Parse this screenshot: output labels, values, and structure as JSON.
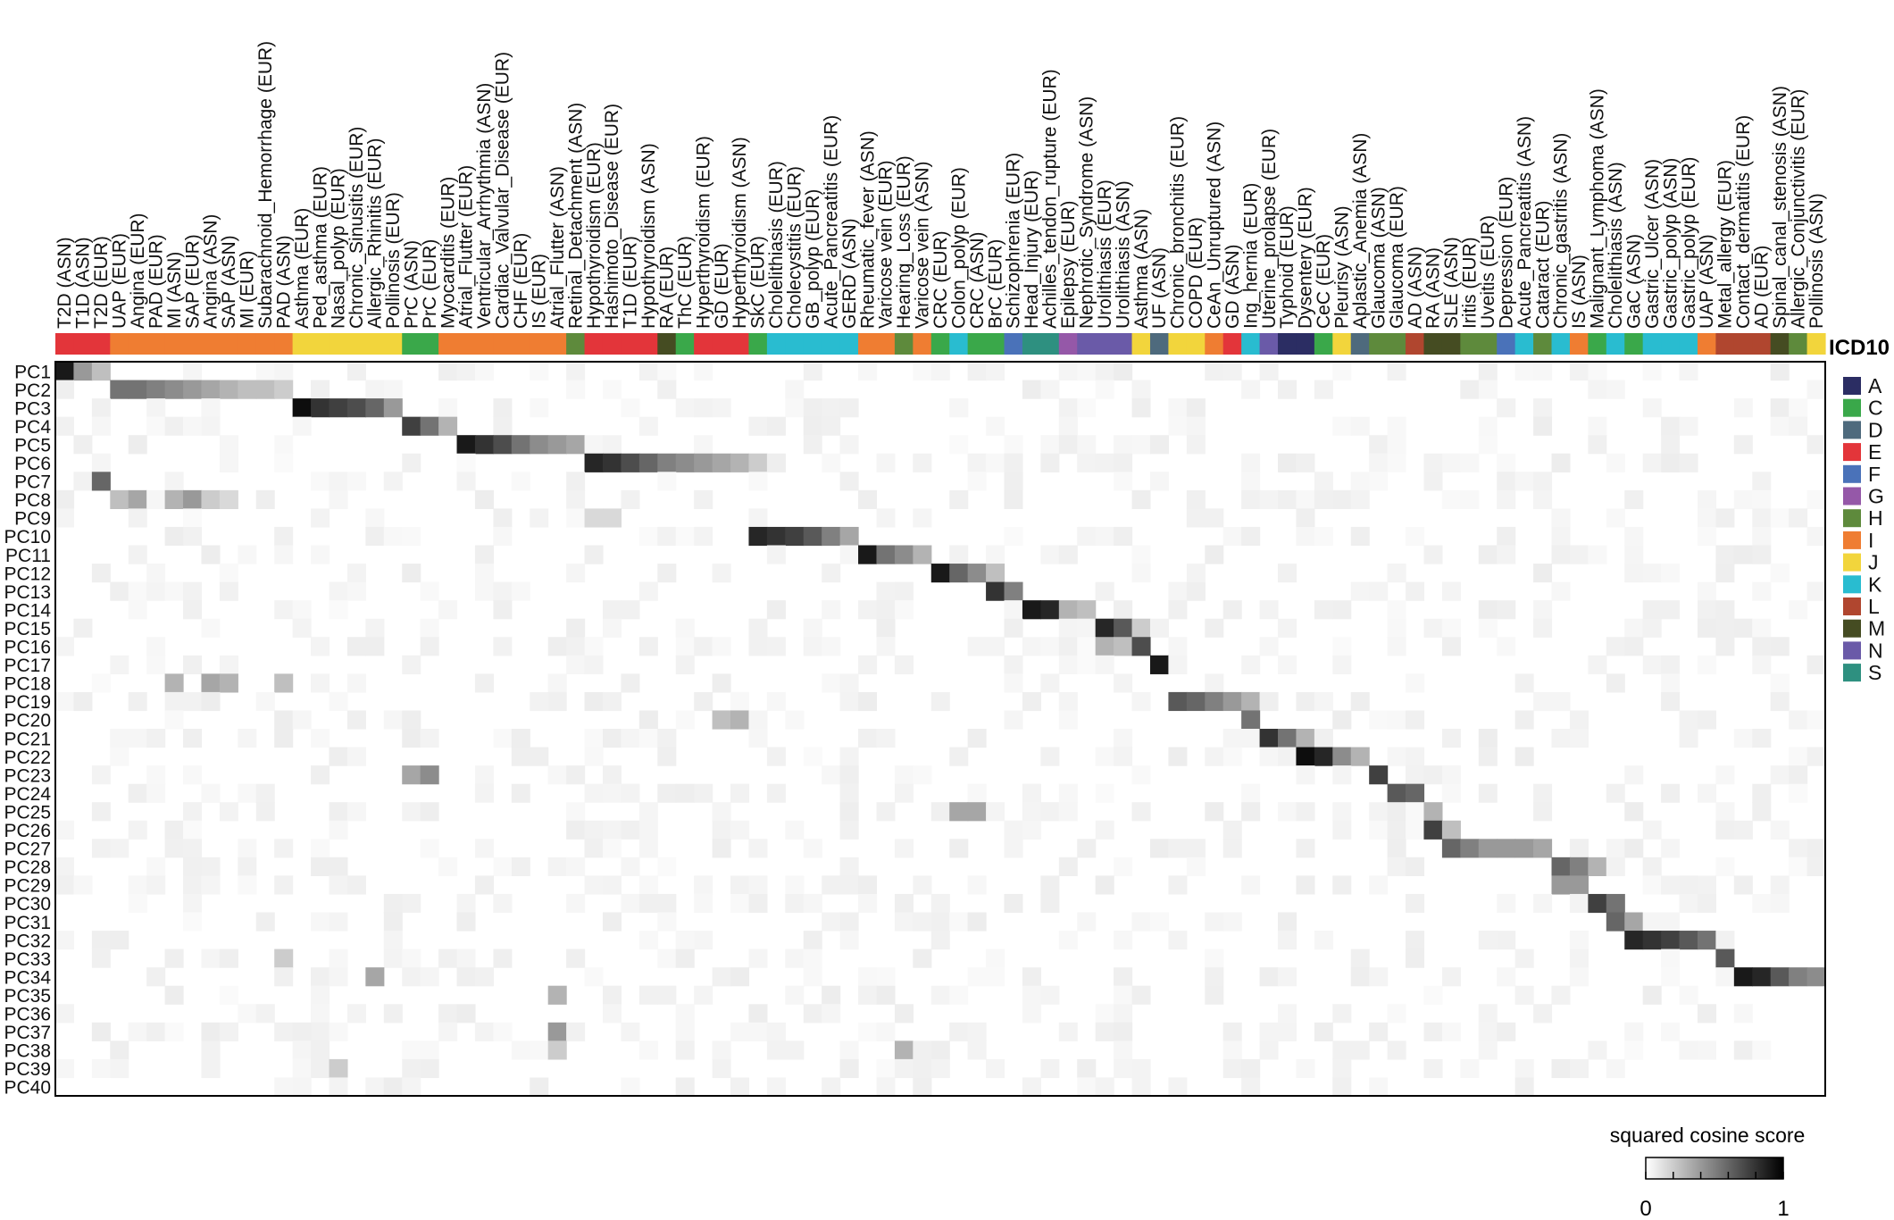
{
  "chart_data": {
    "type": "heatmap",
    "title": "",
    "xlabel": "",
    "ylabel": "",
    "columns": [
      {
        "name": "T2D (ASN)",
        "icd": "E"
      },
      {
        "name": "T1D (ASN)",
        "icd": "E"
      },
      {
        "name": "T2D (EUR)",
        "icd": "E"
      },
      {
        "name": "UAP (EUR)",
        "icd": "I"
      },
      {
        "name": "Angina (EUR)",
        "icd": "I"
      },
      {
        "name": "PAD (EUR)",
        "icd": "I"
      },
      {
        "name": "MI (ASN)",
        "icd": "I"
      },
      {
        "name": "SAP (EUR)",
        "icd": "I"
      },
      {
        "name": "Angina (ASN)",
        "icd": "I"
      },
      {
        "name": "SAP (ASN)",
        "icd": "I"
      },
      {
        "name": "MI (EUR)",
        "icd": "I"
      },
      {
        "name": "Subarachnoid_Hemorrhage (EUR)",
        "icd": "I"
      },
      {
        "name": "PAD (ASN)",
        "icd": "I"
      },
      {
        "name": "Asthma (EUR)",
        "icd": "J"
      },
      {
        "name": "Ped_asthma (EUR)",
        "icd": "J"
      },
      {
        "name": "Nasal_polyp (EUR)",
        "icd": "J"
      },
      {
        "name": "Chronic_Sinusitis (EUR)",
        "icd": "J"
      },
      {
        "name": "Allergic_Rhinitis (EUR)",
        "icd": "J"
      },
      {
        "name": "Pollinosis (EUR)",
        "icd": "J"
      },
      {
        "name": "PrC (ASN)",
        "icd": "C"
      },
      {
        "name": "PrC (EUR)",
        "icd": "C"
      },
      {
        "name": "Myocarditis (EUR)",
        "icd": "I"
      },
      {
        "name": "Atrial_Flutter (EUR)",
        "icd": "I"
      },
      {
        "name": "Ventricular_Arrhythmia (ASN)",
        "icd": "I"
      },
      {
        "name": "Cardiac_Valvular_Disease (EUR)",
        "icd": "I"
      },
      {
        "name": "CHF (EUR)",
        "icd": "I"
      },
      {
        "name": "IS (EUR)",
        "icd": "I"
      },
      {
        "name": "Atrial_Flutter (ASN)",
        "icd": "I"
      },
      {
        "name": "Retinal_Detachment (ASN)",
        "icd": "H"
      },
      {
        "name": "Hypothyroidism (EUR)",
        "icd": "E"
      },
      {
        "name": "Hashimoto_Disease (EUR)",
        "icd": "E"
      },
      {
        "name": "T1D (EUR)",
        "icd": "E"
      },
      {
        "name": "Hypothyroidism (ASN)",
        "icd": "E"
      },
      {
        "name": "RA (EUR)",
        "icd": "M"
      },
      {
        "name": "ThC (EUR)",
        "icd": "C"
      },
      {
        "name": "Hyperthyroidism (EUR)",
        "icd": "E"
      },
      {
        "name": "GD (EUR)",
        "icd": "E"
      },
      {
        "name": "Hyperthyroidism (ASN)",
        "icd": "E"
      },
      {
        "name": "SkC (EUR)",
        "icd": "C"
      },
      {
        "name": "Cholelithiasis (EUR)",
        "icd": "K"
      },
      {
        "name": "Cholecystitis (EUR)",
        "icd": "K"
      },
      {
        "name": "GB_polyp (EUR)",
        "icd": "K"
      },
      {
        "name": "Acute_Pancreatitis (EUR)",
        "icd": "K"
      },
      {
        "name": "GERD (ASN)",
        "icd": "K"
      },
      {
        "name": "Rheumatic_fever (ASN)",
        "icd": "I"
      },
      {
        "name": "Varicose vein (EUR)",
        "icd": "I"
      },
      {
        "name": "Hearing_Loss (EUR)",
        "icd": "H"
      },
      {
        "name": "Varicose vein (ASN)",
        "icd": "I"
      },
      {
        "name": "CRC (EUR)",
        "icd": "C"
      },
      {
        "name": "Colon_polyp (EUR)",
        "icd": "K"
      },
      {
        "name": "CRC (ASN)",
        "icd": "C"
      },
      {
        "name": "BrC (EUR)",
        "icd": "C"
      },
      {
        "name": "Schizophrenia (EUR)",
        "icd": "F"
      },
      {
        "name": "Head_Injury (EUR)",
        "icd": "S"
      },
      {
        "name": "Achilles_tendon_rupture (EUR)",
        "icd": "S"
      },
      {
        "name": "Epilepsy (EUR)",
        "icd": "G"
      },
      {
        "name": "Nephrotic_Syndrome (ASN)",
        "icd": "N"
      },
      {
        "name": "Urolithiasis (EUR)",
        "icd": "N"
      },
      {
        "name": "Urolithiasis (ASN)",
        "icd": "N"
      },
      {
        "name": "Asthma (ASN)",
        "icd": "J"
      },
      {
        "name": "UF (ASN)",
        "icd": "D"
      },
      {
        "name": "Chronic_bronchitis (EUR)",
        "icd": "J"
      },
      {
        "name": "COPD (EUR)",
        "icd": "J"
      },
      {
        "name": "CeAn_Unruptured (ASN)",
        "icd": "I"
      },
      {
        "name": "GD (ASN)",
        "icd": "E"
      },
      {
        "name": "Ing_hernia (EUR)",
        "icd": "K"
      },
      {
        "name": "Uterine_prolapse (EUR)",
        "icd": "N"
      },
      {
        "name": "Typhoid (EUR)",
        "icd": "A"
      },
      {
        "name": "Dysentery (EUR)",
        "icd": "A"
      },
      {
        "name": "CeC (EUR)",
        "icd": "C"
      },
      {
        "name": "Pleurisy (ASN)",
        "icd": "J"
      },
      {
        "name": "Aplastic_Anemia (ASN)",
        "icd": "D"
      },
      {
        "name": "Glaucoma (ASN)",
        "icd": "H"
      },
      {
        "name": "Glaucoma (EUR)",
        "icd": "H"
      },
      {
        "name": "AD (ASN)",
        "icd": "L"
      },
      {
        "name": "RA (ASN)",
        "icd": "M"
      },
      {
        "name": "SLE (ASN)",
        "icd": "M"
      },
      {
        "name": "Iritis (EUR)",
        "icd": "H"
      },
      {
        "name": "Uveitis (EUR)",
        "icd": "H"
      },
      {
        "name": "Depression (EUR)",
        "icd": "F"
      },
      {
        "name": "Acute_Pancreatitis (ASN)",
        "icd": "K"
      },
      {
        "name": "Cataract (EUR)",
        "icd": "H"
      },
      {
        "name": "Chronic_gastritis (ASN)",
        "icd": "K"
      },
      {
        "name": "IS (ASN)",
        "icd": "I"
      },
      {
        "name": "Malignant_Lymphoma (ASN)",
        "icd": "C"
      },
      {
        "name": "Cholelithiasis (ASN)",
        "icd": "K"
      },
      {
        "name": "GaC (ASN)",
        "icd": "C"
      },
      {
        "name": "Gastric_Ulcer (ASN)",
        "icd": "K"
      },
      {
        "name": "Gastric_polyp (ASN)",
        "icd": "K"
      },
      {
        "name": "Gastric_polyp (EUR)",
        "icd": "K"
      },
      {
        "name": "UAP (ASN)",
        "icd": "I"
      },
      {
        "name": "Metal_allergy (EUR)",
        "icd": "L"
      },
      {
        "name": "Contact_dermatitis (EUR)",
        "icd": "L"
      },
      {
        "name": "AD (EUR)",
        "icd": "L"
      },
      {
        "name": "Spinal_canal_stenosis (ASN)",
        "icd": "M"
      },
      {
        "name": "Allergic_Conjunctivitis (EUR)",
        "icd": "H"
      },
      {
        "name": "Pollinosis (ASN)",
        "icd": "J"
      }
    ],
    "rows": [
      "PC1",
      "PC2",
      "PC3",
      "PC4",
      "PC5",
      "PC6",
      "PC7",
      "PC8",
      "PC9",
      "PC10",
      "PC11",
      "PC12",
      "PC13",
      "PC14",
      "PC15",
      "PC16",
      "PC17",
      "PC18",
      "PC19",
      "PC20",
      "PC21",
      "PC22",
      "PC23",
      "PC24",
      "PC25",
      "PC26",
      "PC27",
      "PC28",
      "PC29",
      "PC30",
      "PC31",
      "PC32",
      "PC33",
      "PC34",
      "PC35",
      "PC36",
      "PC37",
      "PC38",
      "PC39",
      "PC40"
    ],
    "strong_cells": [
      [
        0,
        0,
        0.9
      ],
      [
        0,
        1,
        0.4
      ],
      [
        0,
        2,
        0.25
      ],
      [
        1,
        3,
        0.55
      ],
      [
        1,
        4,
        0.55
      ],
      [
        1,
        5,
        0.5
      ],
      [
        1,
        6,
        0.45
      ],
      [
        1,
        7,
        0.4
      ],
      [
        1,
        8,
        0.35
      ],
      [
        1,
        9,
        0.3
      ],
      [
        1,
        10,
        0.25
      ],
      [
        1,
        11,
        0.25
      ],
      [
        1,
        12,
        0.2
      ],
      [
        2,
        13,
        0.95
      ],
      [
        2,
        14,
        0.8
      ],
      [
        2,
        15,
        0.75
      ],
      [
        2,
        16,
        0.7
      ],
      [
        2,
        17,
        0.6
      ],
      [
        2,
        18,
        0.4
      ],
      [
        3,
        19,
        0.75
      ],
      [
        3,
        20,
        0.55
      ],
      [
        3,
        21,
        0.3
      ],
      [
        4,
        22,
        0.9
      ],
      [
        4,
        23,
        0.8
      ],
      [
        4,
        24,
        0.7
      ],
      [
        4,
        25,
        0.55
      ],
      [
        4,
        26,
        0.45
      ],
      [
        4,
        27,
        0.4
      ],
      [
        4,
        28,
        0.35
      ],
      [
        5,
        29,
        0.85
      ],
      [
        5,
        30,
        0.8
      ],
      [
        5,
        31,
        0.7
      ],
      [
        5,
        32,
        0.6
      ],
      [
        5,
        33,
        0.5
      ],
      [
        5,
        34,
        0.45
      ],
      [
        5,
        35,
        0.4
      ],
      [
        5,
        36,
        0.35
      ],
      [
        5,
        37,
        0.3
      ],
      [
        5,
        38,
        0.2
      ],
      [
        6,
        2,
        0.6
      ],
      [
        7,
        3,
        0.25
      ],
      [
        7,
        4,
        0.35
      ],
      [
        7,
        6,
        0.3
      ],
      [
        7,
        7,
        0.4
      ],
      [
        7,
        8,
        0.2
      ],
      [
        7,
        9,
        0.15
      ],
      [
        8,
        29,
        0.15
      ],
      [
        8,
        30,
        0.15
      ],
      [
        9,
        38,
        0.85
      ],
      [
        9,
        39,
        0.8
      ],
      [
        9,
        40,
        0.75
      ],
      [
        9,
        41,
        0.65
      ],
      [
        9,
        42,
        0.5
      ],
      [
        9,
        43,
        0.35
      ],
      [
        10,
        44,
        0.9
      ],
      [
        10,
        45,
        0.55
      ],
      [
        10,
        46,
        0.45
      ],
      [
        10,
        47,
        0.3
      ],
      [
        11,
        48,
        0.9
      ],
      [
        11,
        49,
        0.6
      ],
      [
        11,
        50,
        0.45
      ],
      [
        11,
        51,
        0.25
      ],
      [
        12,
        51,
        0.8
      ],
      [
        12,
        52,
        0.5
      ],
      [
        13,
        53,
        0.9
      ],
      [
        13,
        54,
        0.85
      ],
      [
        13,
        55,
        0.3
      ],
      [
        13,
        56,
        0.25
      ],
      [
        14,
        57,
        0.85
      ],
      [
        14,
        58,
        0.65
      ],
      [
        14,
        59,
        0.2
      ],
      [
        15,
        59,
        0.7
      ],
      [
        15,
        57,
        0.3
      ],
      [
        15,
        58,
        0.25
      ],
      [
        16,
        60,
        0.9
      ],
      [
        17,
        6,
        0.3
      ],
      [
        17,
        8,
        0.35
      ],
      [
        17,
        9,
        0.3
      ],
      [
        17,
        12,
        0.25
      ],
      [
        18,
        61,
        0.65
      ],
      [
        18,
        62,
        0.6
      ],
      [
        18,
        63,
        0.5
      ],
      [
        18,
        64,
        0.4
      ],
      [
        18,
        65,
        0.3
      ],
      [
        19,
        65,
        0.55
      ],
      [
        19,
        37,
        0.3
      ],
      [
        19,
        36,
        0.25
      ],
      [
        20,
        66,
        0.8
      ],
      [
        20,
        67,
        0.55
      ],
      [
        20,
        68,
        0.3
      ],
      [
        21,
        68,
        0.95
      ],
      [
        21,
        69,
        0.85
      ],
      [
        21,
        70,
        0.45
      ],
      [
        21,
        71,
        0.3
      ],
      [
        22,
        72,
        0.75
      ],
      [
        22,
        19,
        0.35
      ],
      [
        22,
        20,
        0.45
      ],
      [
        23,
        73,
        0.65
      ],
      [
        23,
        74,
        0.6
      ],
      [
        24,
        75,
        0.3
      ],
      [
        24,
        49,
        0.35
      ],
      [
        24,
        50,
        0.35
      ],
      [
        25,
        75,
        0.75
      ],
      [
        25,
        76,
        0.25
      ],
      [
        26,
        76,
        0.6
      ],
      [
        26,
        77,
        0.5
      ],
      [
        26,
        78,
        0.4
      ],
      [
        26,
        79,
        0.4
      ],
      [
        26,
        80,
        0.4
      ],
      [
        26,
        81,
        0.35
      ],
      [
        27,
        82,
        0.6
      ],
      [
        27,
        83,
        0.5
      ],
      [
        27,
        84,
        0.3
      ],
      [
        28,
        82,
        0.4
      ],
      [
        28,
        83,
        0.4
      ],
      [
        29,
        84,
        0.75
      ],
      [
        29,
        85,
        0.55
      ],
      [
        30,
        85,
        0.6
      ],
      [
        30,
        86,
        0.35
      ],
      [
        31,
        86,
        0.85
      ],
      [
        31,
        87,
        0.8
      ],
      [
        31,
        88,
        0.75
      ],
      [
        31,
        89,
        0.65
      ],
      [
        31,
        90,
        0.55
      ],
      [
        32,
        91,
        0.65
      ],
      [
        32,
        12,
        0.2
      ],
      [
        33,
        92,
        0.9
      ],
      [
        33,
        93,
        0.85
      ],
      [
        33,
        94,
        0.65
      ],
      [
        33,
        95,
        0.5
      ],
      [
        33,
        96,
        0.45
      ],
      [
        33,
        17,
        0.35
      ],
      [
        34,
        97,
        0.55
      ],
      [
        34,
        27,
        0.3
      ],
      [
        35,
        97,
        0.2
      ],
      [
        36,
        97,
        0.45
      ],
      [
        36,
        27,
        0.4
      ],
      [
        37,
        46,
        0.3
      ],
      [
        37,
        27,
        0.2
      ],
      [
        38,
        15,
        0.2
      ]
    ],
    "legend": {
      "title": "ICD10",
      "position": "right",
      "items": [
        {
          "code": "A",
          "color": "#2b2d63"
        },
        {
          "code": "C",
          "color": "#3aa84a"
        },
        {
          "code": "D",
          "color": "#4e6a7d"
        },
        {
          "code": "E",
          "color": "#e3353a"
        },
        {
          "code": "F",
          "color": "#4a72b9"
        },
        {
          "code": "G",
          "color": "#9558a8"
        },
        {
          "code": "H",
          "color": "#5e8a3c"
        },
        {
          "code": "I",
          "color": "#ef7d32"
        },
        {
          "code": "J",
          "color": "#f2d53c"
        },
        {
          "code": "K",
          "color": "#29bcd0"
        },
        {
          "code": "L",
          "color": "#b0462f"
        },
        {
          "code": "M",
          "color": "#454c22"
        },
        {
          "code": "N",
          "color": "#6a5aa8"
        },
        {
          "code": "S",
          "color": "#2e9080"
        }
      ]
    },
    "colorbar": {
      "title": "squared cosine score",
      "min_label": "0",
      "max_label": "1",
      "range": [
        0,
        1
      ]
    }
  }
}
